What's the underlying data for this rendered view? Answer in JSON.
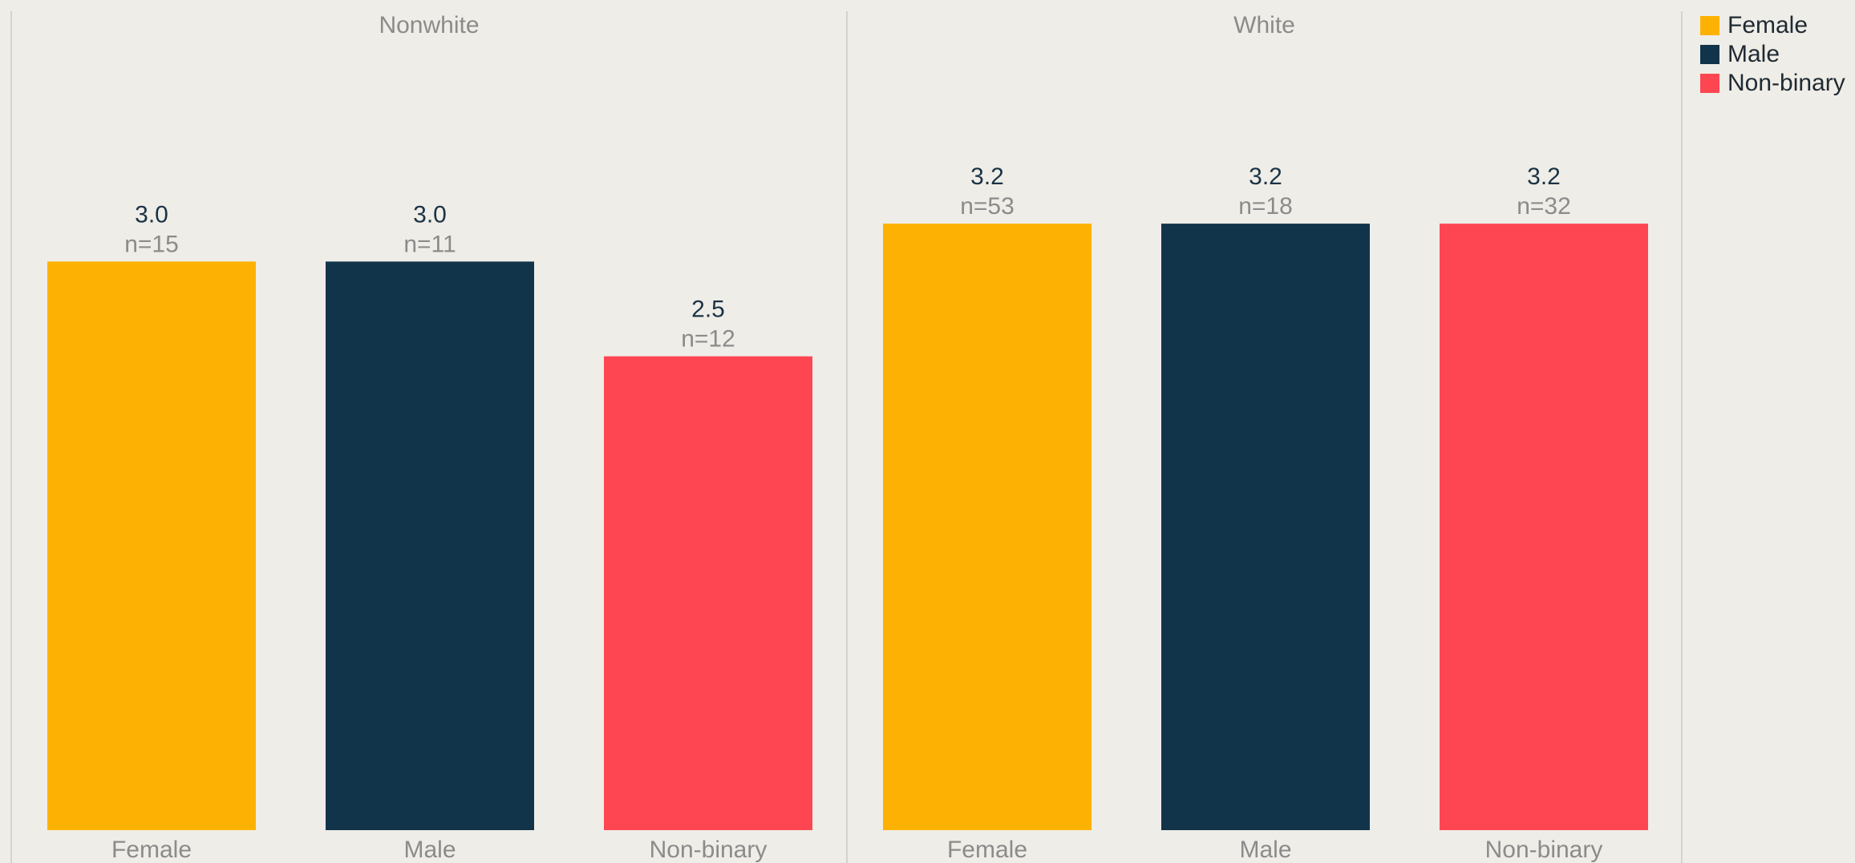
{
  "chart_data": {
    "type": "bar",
    "panels": [
      {
        "name": "Nonwhite",
        "categories": [
          "Female",
          "Male",
          "Non-binary"
        ],
        "values": [
          3.0,
          3.0,
          2.5
        ],
        "value_labels": [
          "3.0",
          "3.0",
          "2.5"
        ],
        "n_labels": [
          "n=15",
          "n=11",
          "n=12"
        ]
      },
      {
        "name": "White",
        "categories": [
          "Female",
          "Male",
          "Non-binary"
        ],
        "values": [
          3.2,
          3.2,
          3.2
        ],
        "value_labels": [
          "3.2",
          "3.2",
          "3.2"
        ],
        "n_labels": [
          "n=53",
          "n=18",
          "n=32"
        ]
      }
    ],
    "series_colors": {
      "Female": "#fdb203",
      "Male": "#11344a",
      "Non-binary": "#fe4653"
    },
    "ylim": [
      0,
      4.38
    ],
    "grid": false,
    "legend_position": "top-right",
    "legend": [
      "Female",
      "Male",
      "Non-binary"
    ]
  },
  "colors": {
    "background": "#efede7",
    "divider": "#d6d3cc",
    "panel_title": "#8b8b8b",
    "value_label": "#1b3346",
    "n_label": "#8b8b8b",
    "category_label": "#8b8b8b"
  }
}
